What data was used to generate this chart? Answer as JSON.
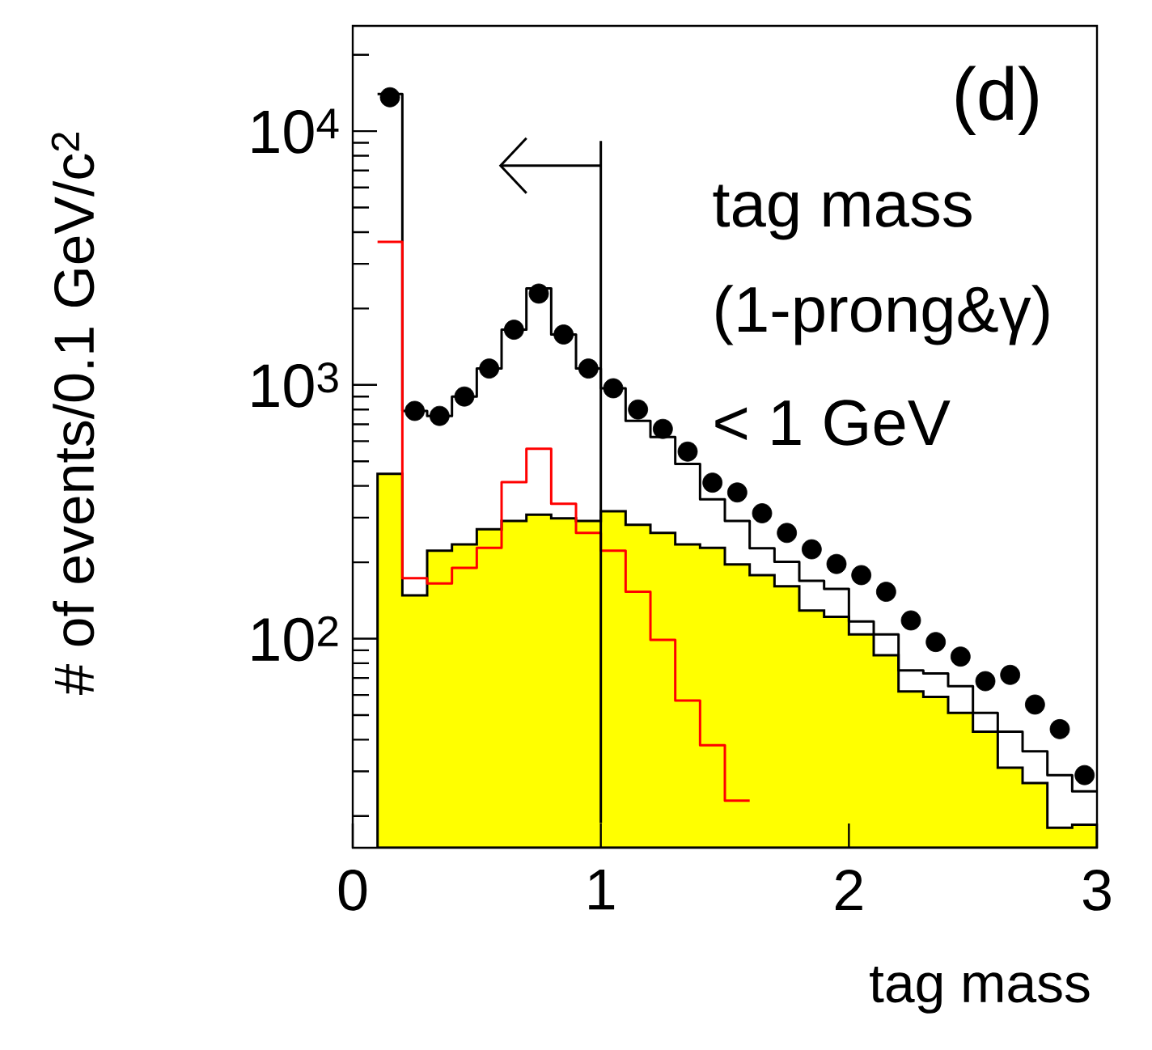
{
  "chart_data": {
    "type": "histogram",
    "xlabel": "tag mass",
    "ylabel": "# of events/0.1 GeV/c$^{2}$",
    "bins": [
      0.1,
      0.2,
      0.3,
      0.4,
      0.5,
      0.6,
      0.7,
      0.8,
      0.9,
      1.0,
      1.1,
      1.2,
      1.3,
      1.4,
      1.5,
      1.6,
      1.7,
      1.8,
      1.9,
      2.0,
      2.1,
      2.2,
      2.3,
      2.4,
      2.5,
      2.6,
      2.7,
      2.8,
      2.9,
      3.0
    ],
    "series": [
      {
        "color": "#ffff00",
        "values": [
          446,
          148,
          222,
          235,
          270,
          291,
          308,
          298,
          291,
          318,
          281,
          261,
          235,
          228,
          196,
          178,
          161,
          129,
          122,
          104,
          86,
          62,
          59,
          51,
          43,
          31,
          27,
          18,
          18.5
        ]
      },
      {
        "type": "step",
        "color": "#000000",
        "x": [
          0.1,
          0.2,
          0.3,
          0.4,
          0.5,
          0.6,
          0.7,
          0.8,
          0.9,
          1.0,
          1.1,
          1.2,
          1.3,
          1.4,
          1.5,
          1.6,
          1.7,
          1.8,
          1.9,
          2.0,
          2.1,
          2.2,
          2.3,
          2.4,
          2.5,
          2.6,
          2.7,
          2.8,
          2.9,
          3.0
        ],
        "values": [
          14000,
          790,
          755,
          900,
          1160,
          1650,
          2400,
          1580,
          1160,
          970,
          722,
          623,
          488,
          354,
          291,
          227,
          201,
          169,
          157,
          117,
          104,
          75,
          73,
          65,
          51,
          43,
          36,
          29,
          25,
          25
        ]
      },
      {
        "type": "step",
        "color": "#ff0000",
        "x": [
          0.1,
          0.2,
          0.3,
          0.4,
          0.5,
          0.6,
          0.7,
          0.8,
          0.9,
          1.0,
          1.1,
          1.2,
          1.3,
          1.4,
          1.5,
          1.6
        ],
        "values": [
          3660,
          173,
          165,
          190,
          228,
          414,
          560,
          340,
          261,
          222,
          153,
          99,
          57,
          38,
          23,
          23
        ]
      },
      {
        "type": "scatter",
        "color": "#000000",
        "marker": "circle",
        "x": [
          0.15,
          0.25,
          0.35,
          0.45,
          0.55,
          0.65,
          0.75,
          0.85,
          0.95,
          1.05,
          1.15,
          1.25,
          1.35,
          1.45,
          1.55,
          1.65,
          1.75,
          1.85,
          1.95,
          2.05,
          2.15,
          2.25,
          2.35,
          2.45,
          2.55,
          2.65,
          2.75,
          2.85,
          2.95
        ],
        "values": [
          13600,
          790,
          755,
          900,
          1160,
          1650,
          2290,
          1580,
          1160,
          970,
          800,
          671,
          546,
          412,
          377,
          312,
          261,
          225,
          197,
          178,
          153,
          118,
          97,
          85,
          68,
          72,
          55,
          44,
          29
        ]
      }
    ],
    "log": "y",
    "xlim": [
      0,
      3
    ],
    "ylim": [
      15,
      26000
    ],
    "xticks": [
      0,
      1,
      2,
      3
    ],
    "yticks": [
      {
        "value": 100,
        "label": "10$^{2}$"
      },
      {
        "value": 1000,
        "label": "10$^{3}$"
      },
      {
        "value": 10000,
        "label": "10$^{4}$"
      }
    ],
    "ref_lines": [
      {
        "axis": "x",
        "value": 1,
        "color": "#000000"
      }
    ],
    "annotations": [
      "(d)",
      "tag mass",
      "(1-prong&γ)",
      "< 1 GeV"
    ]
  }
}
